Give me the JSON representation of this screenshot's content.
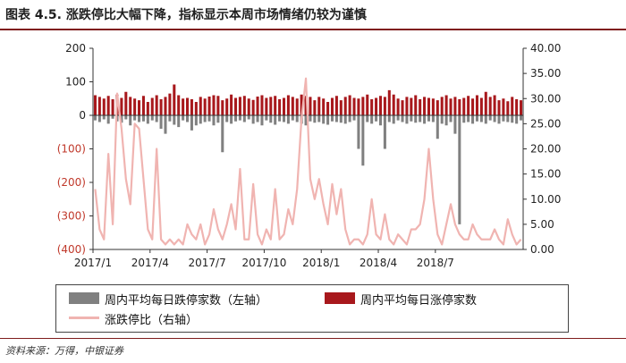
{
  "title": "图表 4.5. 涨跌停比大幅下降，指标显示本周市场情绪仍较为谨慎",
  "footer": "资料来源：万得，中银证券",
  "colors": {
    "fall": "#808080",
    "rise": "#a8181c",
    "ratio": "#f0b4b1",
    "neg_tick": "#c0392b",
    "title_rule": "#7f1d1d"
  },
  "legend": {
    "fall": "周内平均每日跌停家数（左轴）",
    "rise": "周内平均每日涨停家数",
    "ratio": "涨跌停比（右轴）"
  },
  "chart_data": {
    "type": "bar",
    "title": "",
    "left_axis": {
      "ylim": [
        -400,
        200
      ],
      "ticks": [
        200,
        100,
        0,
        -100,
        -200,
        -300,
        -400
      ],
      "tick_labels": [
        "200",
        "100",
        "0",
        "(100)",
        "(200)",
        "(300)",
        "(400)"
      ]
    },
    "right_axis": {
      "ylim": [
        0,
        40
      ],
      "ticks": [
        40,
        35,
        30,
        25,
        20,
        15,
        10,
        5,
        0
      ],
      "tick_labels": [
        "40.00",
        "35.00",
        "30.00",
        "25.00",
        "20.00",
        "15.00",
        "10.00",
        "5.00",
        "0.00"
      ]
    },
    "x_tick_labels": [
      "2017/1",
      "2017/4",
      "2017/7",
      "2017/10",
      "2018/1",
      "2018/4",
      "2018/7"
    ],
    "x_range_weeks": [
      0,
      98
    ],
    "x_tick_weeks": [
      0,
      13,
      26,
      39,
      52,
      65,
      78
    ],
    "series": [
      {
        "name": "周内平均每日涨停家数",
        "axis": "left",
        "values": [
          60,
          55,
          50,
          58,
          48,
          62,
          52,
          70,
          55,
          50,
          45,
          58,
          40,
          52,
          60,
          48,
          55,
          65,
          92,
          60,
          50,
          52,
          48,
          40,
          55,
          50,
          56,
          60,
          58,
          45,
          50,
          62,
          52,
          55,
          58,
          50,
          46,
          56,
          60,
          52,
          55,
          58,
          48,
          52,
          60,
          55,
          50,
          62,
          58,
          55,
          45,
          55,
          50,
          40,
          52,
          58,
          45,
          55,
          60,
          52,
          50,
          55,
          62,
          48,
          52,
          58,
          55,
          75,
          62,
          50,
          45,
          55,
          52,
          60,
          48,
          55,
          52,
          50,
          45,
          55,
          60,
          50,
          55,
          48,
          52,
          58,
          50,
          60,
          52,
          70,
          55,
          60,
          45,
          50,
          42,
          55,
          48,
          45
        ]
      },
      {
        "name": "周内平均每日跌停家数",
        "axis": "left",
        "values": [
          -15,
          -20,
          -12,
          -25,
          -10,
          -18,
          -22,
          -12,
          -30,
          -15,
          -20,
          -18,
          -25,
          -15,
          -20,
          -40,
          -55,
          -18,
          -28,
          -35,
          -15,
          -20,
          -45,
          -30,
          -25,
          -20,
          -18,
          -30,
          -22,
          -110,
          -20,
          -25,
          -18,
          -15,
          -20,
          -12,
          -25,
          -20,
          -30,
          -15,
          -22,
          -28,
          -18,
          -20,
          -25,
          -15,
          -20,
          -25,
          -30,
          -18,
          -22,
          -20,
          -25,
          -28,
          -18,
          -20,
          -22,
          -25,
          -20,
          -15,
          -100,
          -150,
          -20,
          -25,
          -18,
          -30,
          -100,
          -20,
          -25,
          -15,
          -20,
          -25,
          -18,
          -22,
          -20,
          -25,
          -18,
          -20,
          -70,
          -25,
          -30,
          -20,
          -55,
          -325,
          -22,
          -20,
          -25,
          -18,
          -20,
          -25,
          -15,
          -20,
          -25,
          -18,
          -20,
          -22,
          -25,
          -15
        ]
      },
      {
        "name": "涨跌停比",
        "axis": "right",
        "type": "line",
        "values": [
          12,
          4,
          2,
          19,
          5,
          31,
          24,
          14,
          9,
          25,
          24,
          14,
          4,
          2,
          20,
          2,
          1,
          2,
          1,
          2,
          1,
          5,
          3,
          2,
          5,
          1,
          3,
          8,
          4,
          2,
          5,
          9,
          4,
          16,
          2,
          2,
          13,
          3,
          1,
          4,
          2,
          12,
          2,
          3,
          8,
          5,
          12,
          26,
          34,
          14,
          10,
          14,
          9,
          5,
          13,
          7,
          12,
          4,
          1,
          2,
          2,
          1,
          3,
          10,
          3,
          2,
          7,
          2,
          1,
          3,
          2,
          1,
          4,
          4,
          5,
          10,
          20,
          10,
          3,
          1,
          5,
          9,
          5,
          3,
          2,
          2,
          5,
          3,
          2,
          2,
          2,
          4,
          2,
          1,
          6,
          3,
          1,
          2
        ]
      }
    ],
    "legend_position": "bottom"
  }
}
